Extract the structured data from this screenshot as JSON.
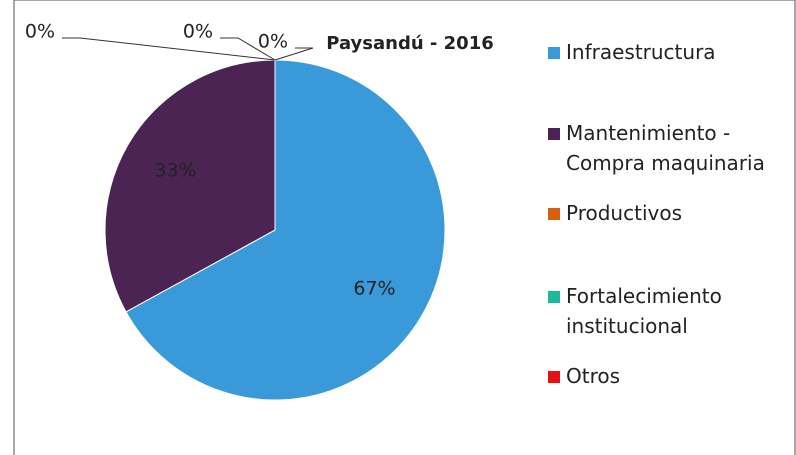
{
  "chart_data": {
    "type": "pie",
    "title": "Paysandú - 2016",
    "categories": [
      "Infraestructura",
      "Mantenimiento - Compra maquinaria",
      "Productivos",
      "Fortalecimiento institucional",
      "Otros"
    ],
    "values": [
      67,
      33,
      0,
      0,
      0
    ],
    "value_labels": [
      "67%",
      "33%",
      "0%",
      "0%",
      "0%"
    ],
    "colors": [
      "#3a9ad9",
      "#4b2454",
      "#d5600f",
      "#1fb89a",
      "#e81010"
    ],
    "legend": "right"
  }
}
